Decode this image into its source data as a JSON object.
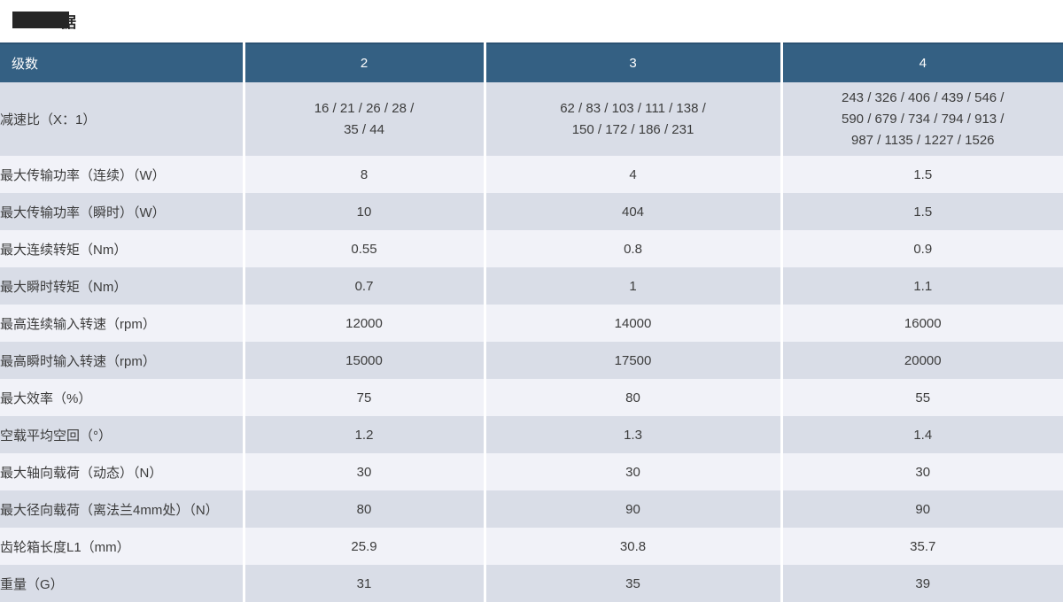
{
  "title": {
    "redacted": true,
    "visible_char": "据"
  },
  "colors": {
    "header_bg": "#346083",
    "header_top_border": "#2B5273",
    "stripe_dark": "#D9DDE7",
    "stripe_light": "#F1F2F8",
    "header_text": "#FFFFFF",
    "body_text": "#3C3C3C"
  },
  "table": {
    "header": {
      "label": "级数",
      "columns": [
        "2",
        "3",
        "4"
      ]
    },
    "rows": [
      {
        "label": "减速比（X：1）",
        "values": [
          [
            "16 / 21 / 26 / 28 /",
            "35 / 44"
          ],
          [
            "62 / 83 / 103 / 111 / 138 /",
            "150 / 172 / 186 / 231"
          ],
          [
            "243 / 326 / 406 / 439 / 546 /",
            "590 / 679 / 734 / 794 / 913 /",
            "987 / 1135 / 1227 / 1526"
          ]
        ]
      },
      {
        "label": "最大传输功率（连续）（W）",
        "values": [
          "8",
          "4",
          "1.5"
        ]
      },
      {
        "label": "最大传输功率（瞬时）（W）",
        "values": [
          "10",
          "404",
          "1.5"
        ]
      },
      {
        "label": "最大连续转矩（Nm）",
        "values": [
          "0.55",
          "0.8",
          "0.9"
        ]
      },
      {
        "label": "最大瞬时转矩（Nm）",
        "values": [
          "0.7",
          "1",
          "1.1"
        ]
      },
      {
        "label": "最高连续输入转速（rpm）",
        "values": [
          "12000",
          "14000",
          "16000"
        ]
      },
      {
        "label": "最高瞬时输入转速（rpm）",
        "values": [
          "15000",
          "17500",
          "20000"
        ]
      },
      {
        "label": "最大效率（%）",
        "values": [
          "75",
          "80",
          "55"
        ]
      },
      {
        "label": "空载平均空回（°）",
        "values": [
          "1.2",
          "1.3",
          "1.4"
        ]
      },
      {
        "label": "最大轴向载荷（动态）（N）",
        "values": [
          "30",
          "30",
          "30"
        ]
      },
      {
        "label": "最大径向载荷（离法兰4mm处）（N）",
        "values": [
          "80",
          "90",
          "90"
        ]
      },
      {
        "label": "齿轮箱长度L1（mm）",
        "values": [
          "25.9",
          "30.8",
          "35.7"
        ]
      },
      {
        "label": "重量（G）",
        "values": [
          "31",
          "35",
          "39"
        ]
      }
    ]
  }
}
